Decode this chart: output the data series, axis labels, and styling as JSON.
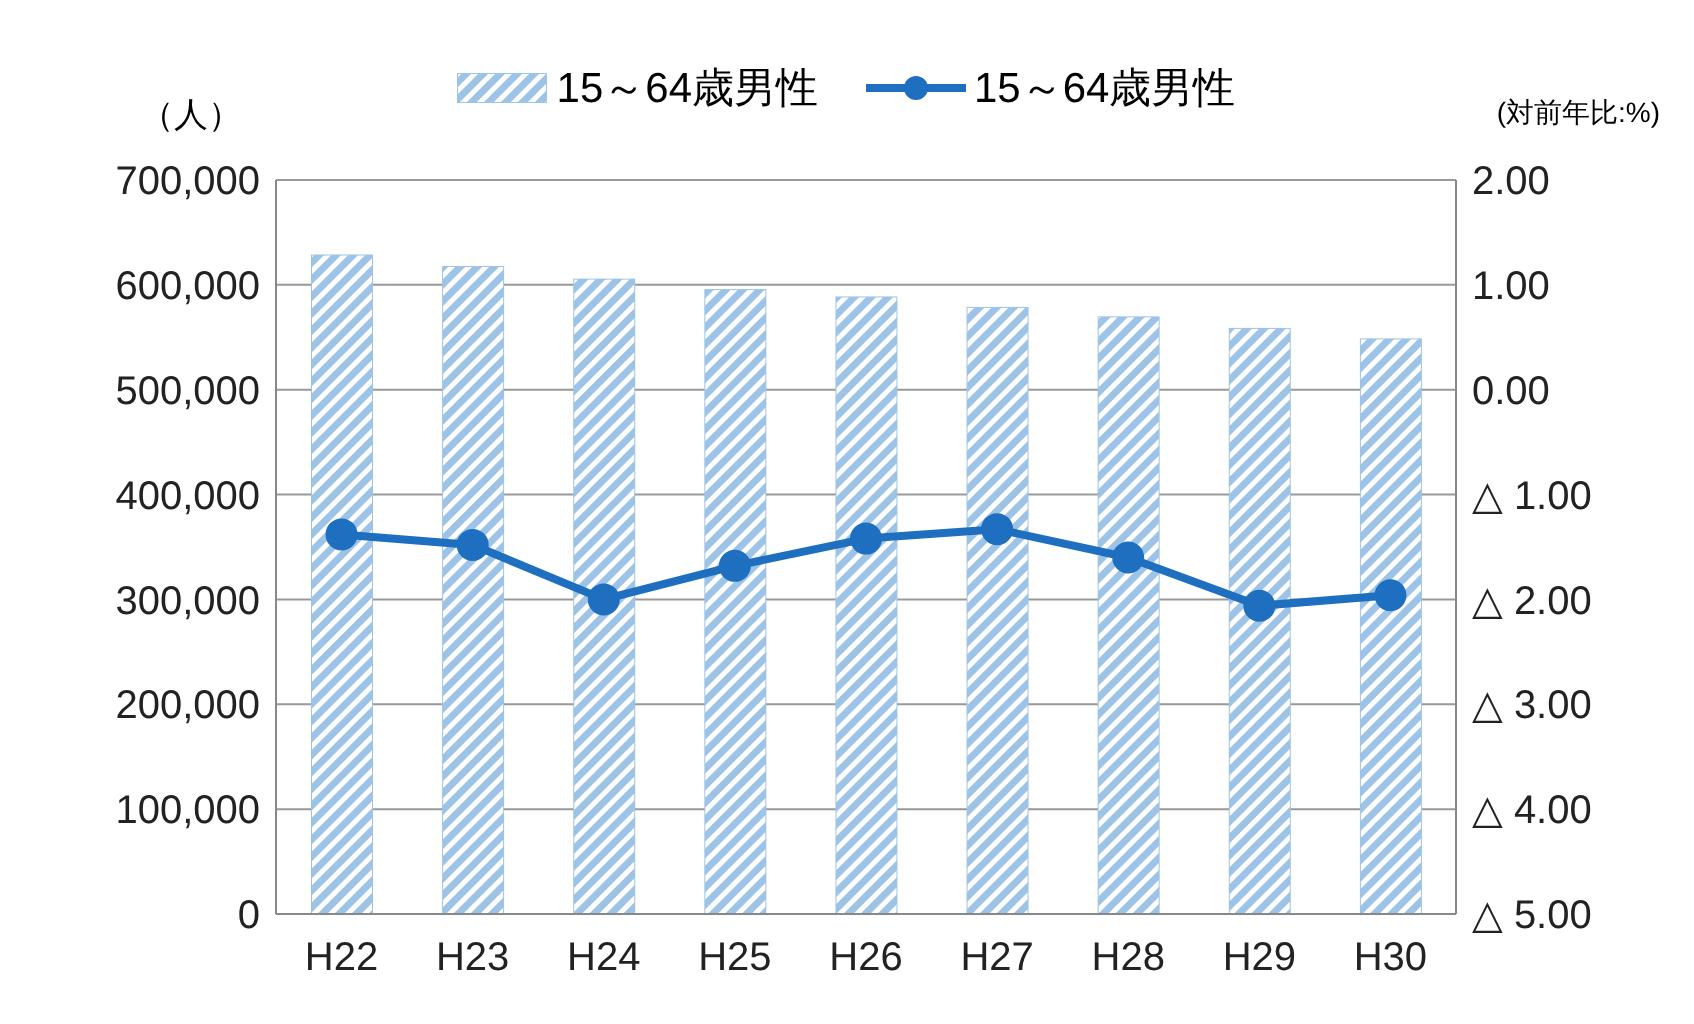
{
  "chart_data": {
    "type": "bar",
    "categories": [
      "H22",
      "H23",
      "H24",
      "H25",
      "H26",
      "H27",
      "H28",
      "H29",
      "H30"
    ],
    "ylabel": "（人）",
    "y2label": "(対前年比:%)",
    "series": [
      {
        "name": "15～64歳男性",
        "color": "#9dc3e6",
        "values": [
          628000,
          617000,
          605000,
          595000,
          588000,
          578000,
          569000,
          558000,
          548000
        ]
      },
      {
        "name": "15～64歳男性",
        "type": "line",
        "axis": "y2",
        "color": "#1f6fc0",
        "values": [
          -1.38,
          -1.48,
          -2.0,
          -1.68,
          -1.42,
          -1.33,
          -1.6,
          -2.06,
          -1.96
        ]
      }
    ],
    "ylim": [
      0,
      700000
    ],
    "yticks": [
      {
        "value": 0,
        "label": "0"
      },
      {
        "value": 100000,
        "label": "100,000"
      },
      {
        "value": 200000,
        "label": "200,000"
      },
      {
        "value": 300000,
        "label": "300,000"
      },
      {
        "value": 400000,
        "label": "400,000"
      },
      {
        "value": 500000,
        "label": "500,000"
      },
      {
        "value": 600000,
        "label": "600,000"
      },
      {
        "value": 700000,
        "label": "700,000"
      }
    ],
    "y2lim": [
      -5,
      2
    ],
    "y2ticks": [
      {
        "value": -5,
        "label": "△ 5.00"
      },
      {
        "value": -4,
        "label": "△ 4.00"
      },
      {
        "value": -3,
        "label": "△ 3.00"
      },
      {
        "value": -2,
        "label": "△ 2.00"
      },
      {
        "value": -1,
        "label": "△ 1.00"
      },
      {
        "value": 0,
        "label": "0.00"
      },
      {
        "value": 1,
        "label": "1.00"
      },
      {
        "value": 2,
        "label": "2.00"
      }
    ],
    "grid": "y",
    "legend": "top",
    "marker": "circle",
    "line_style": "solid"
  }
}
